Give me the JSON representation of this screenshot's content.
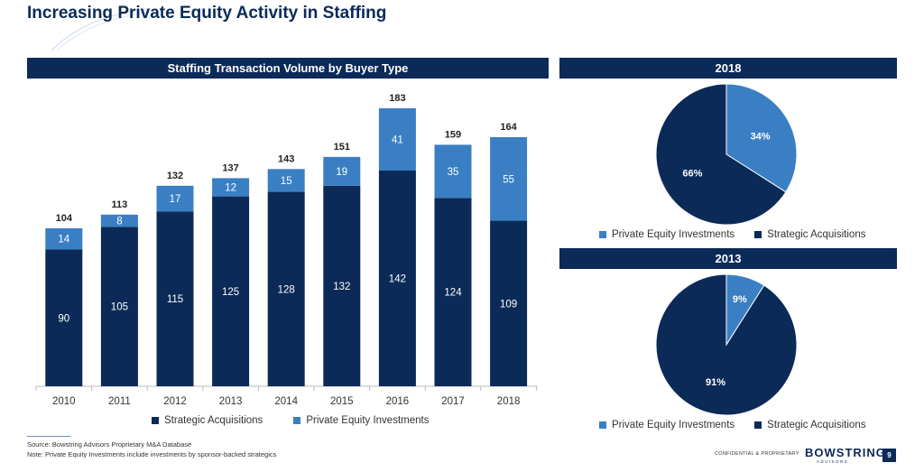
{
  "page": {
    "title": "Increasing Private Equity Activity in Staffing",
    "page_number": "9",
    "confidential": "CONFIDENTIAL & PROPRIETARY",
    "logo_text": "BOWSTRING",
    "logo_sub": "ADVISORS",
    "footnotes": [
      "Source: Bowstring Advisors Proprietary M&A Database",
      "Note: Private Equity Investments include investments by sponsor-backed strategics"
    ]
  },
  "colors": {
    "navy": "#0b2a57",
    "blue": "#3a7fc4"
  },
  "chart_data": [
    {
      "type": "bar",
      "stacked": true,
      "title": "Staffing Transaction Volume by Buyer Type",
      "categories": [
        "2010",
        "2011",
        "2012",
        "2013",
        "2014",
        "2015",
        "2016",
        "2017",
        "2018"
      ],
      "series": [
        {
          "name": "Strategic Acquisitions",
          "values": [
            90,
            105,
            115,
            125,
            128,
            132,
            142,
            124,
            109
          ],
          "color": "#0b2a57"
        },
        {
          "name": "Private Equity Investments",
          "values": [
            14,
            8,
            17,
            12,
            15,
            19,
            41,
            35,
            55
          ],
          "color": "#3a7fc4"
        }
      ],
      "totals": [
        104,
        113,
        132,
        137,
        143,
        151,
        183,
        159,
        164
      ],
      "legend": [
        {
          "label": "Strategic Acquisitions",
          "color": "#0b2a57"
        },
        {
          "label": "Private Equity Investments",
          "color": "#3a7fc4"
        }
      ],
      "legend_position": "bottom",
      "ylim": [
        0,
        183
      ],
      "grid": false
    },
    {
      "type": "pie",
      "title": "2018",
      "slices": [
        {
          "name": "Private Equity Investments",
          "value": 34,
          "label": "34%",
          "color": "#3a7fc4"
        },
        {
          "name": "Strategic Acquisitions",
          "value": 66,
          "label": "66%",
          "color": "#0b2a57"
        }
      ],
      "legend_position": "bottom"
    },
    {
      "type": "pie",
      "title": "2013",
      "slices": [
        {
          "name": "Private Equity Investments",
          "value": 9,
          "label": "9%",
          "color": "#3a7fc4"
        },
        {
          "name": "Strategic Acquisitions",
          "value": 91,
          "label": "91%",
          "color": "#0b2a57"
        }
      ],
      "legend_position": "bottom"
    }
  ]
}
